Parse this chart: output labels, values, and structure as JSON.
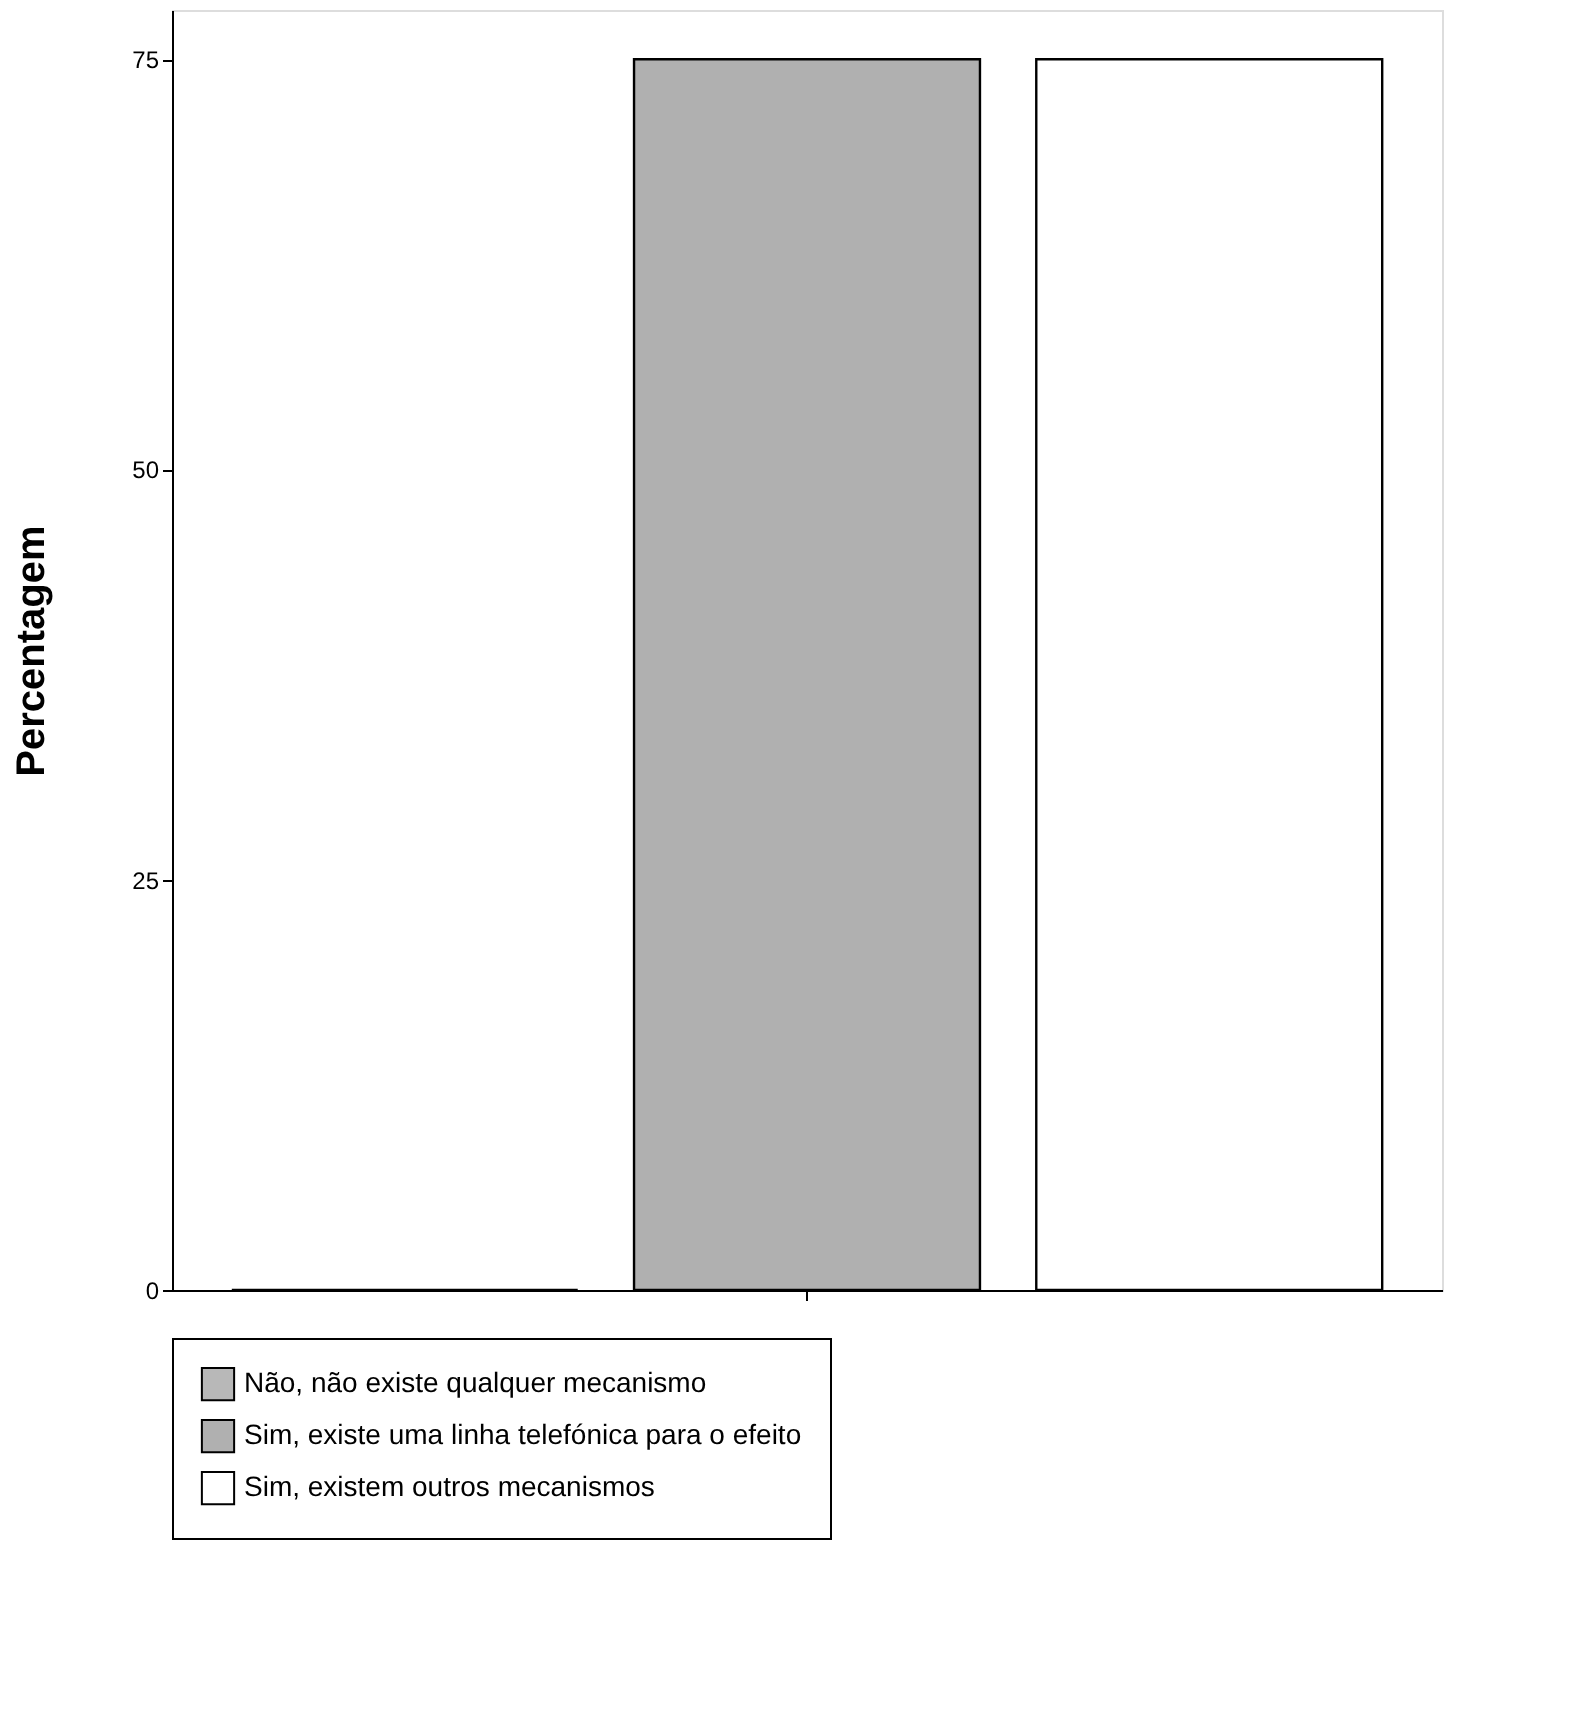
{
  "chart_data": {
    "type": "bar",
    "ylabel": "Percentagem",
    "categories": [
      null
    ],
    "series": [
      {
        "name": "Não, não existe qualquer mecanismo",
        "color": "#b8b8b8",
        "values": [
          0
        ]
      },
      {
        "name": "Sim, existe uma linha telefónica para o efeito",
        "color": "#b0b0b0",
        "values": [
          75
        ]
      },
      {
        "name": "Sim, existem outros mecanismos",
        "color": "#ffffff",
        "values": [
          75
        ]
      }
    ],
    "ylim": [
      0,
      78
    ],
    "yticks": [
      0,
      25,
      50,
      75
    ],
    "grid": false,
    "legend": "bottom",
    "tick_labels": "y"
  }
}
